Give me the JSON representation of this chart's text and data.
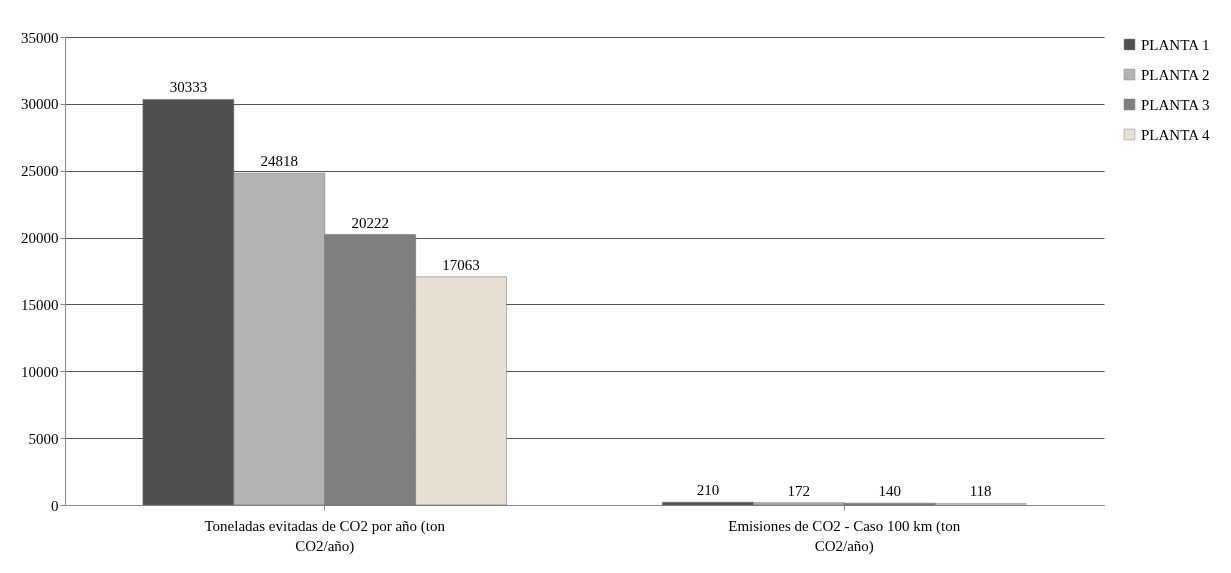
{
  "chart_data": {
    "type": "bar",
    "categories": [
      "Toneladas evitadas de CO2 por año (ton CO2/año)",
      "Emisiones de CO2 - Caso 100 km (ton CO2/año)"
    ],
    "series": [
      {
        "name": "PLANTA 1",
        "color": "#505050",
        "values": [
          30333,
          210
        ]
      },
      {
        "name": "PLANTA 2",
        "color": "#b4b4b4",
        "values": [
          24818,
          172
        ]
      },
      {
        "name": "PLANTA 3",
        "color": "#7f7f7f",
        "values": [
          20222,
          140
        ]
      },
      {
        "name": "PLANTA 4",
        "color": "#e6dfd2",
        "values": [
          17063,
          118
        ]
      }
    ],
    "ylim": [
      0,
      35000
    ],
    "yticks": [
      0,
      5000,
      10000,
      15000,
      20000,
      25000,
      30000,
      35000
    ],
    "grid": "y",
    "legend": "right",
    "data_labels": true
  }
}
